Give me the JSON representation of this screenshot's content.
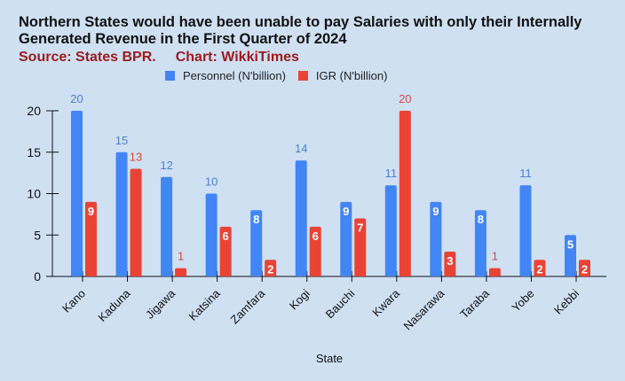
{
  "chart_data": {
    "type": "bar",
    "title": "Northern States would have been unable to pay Salaries with only their Internally Generated Revenue in the First Quarter of 2024",
    "source": "Source: States BPR.",
    "credit": "Chart: WikkiTimes",
    "xlabel": "State",
    "ylabel": "",
    "ylim": [
      0,
      20
    ],
    "yticks": [
      "0",
      "5",
      "10",
      "15",
      "20"
    ],
    "categories": [
      "Kano",
      "Kaduna",
      "Jigawa",
      "Katsina",
      "Zamfara",
      "Kogi",
      "Bauchi",
      "Kwara",
      "Nasarawa",
      "Taraba",
      "Yobe",
      "Kebbi"
    ],
    "series": [
      {
        "name": "Personnel (N'billion)",
        "color": "#4285f4",
        "label_color": "#4a7fd0",
        "values": [
          20,
          15,
          12,
          10,
          8,
          14,
          9,
          11,
          9,
          8,
          11,
          5
        ],
        "label_inside": [
          false,
          false,
          false,
          false,
          true,
          false,
          true,
          false,
          true,
          true,
          false,
          true
        ]
      },
      {
        "name": "IGR (N'billion)",
        "color": "#ea4335",
        "label_color": "#d9453a",
        "values": [
          9,
          13,
          1,
          6,
          2,
          6,
          7,
          20,
          3,
          1,
          2,
          2
        ],
        "label_inside": [
          true,
          false,
          false,
          true,
          true,
          true,
          true,
          false,
          true,
          false,
          true,
          true
        ]
      }
    ],
    "legend": "top"
  }
}
